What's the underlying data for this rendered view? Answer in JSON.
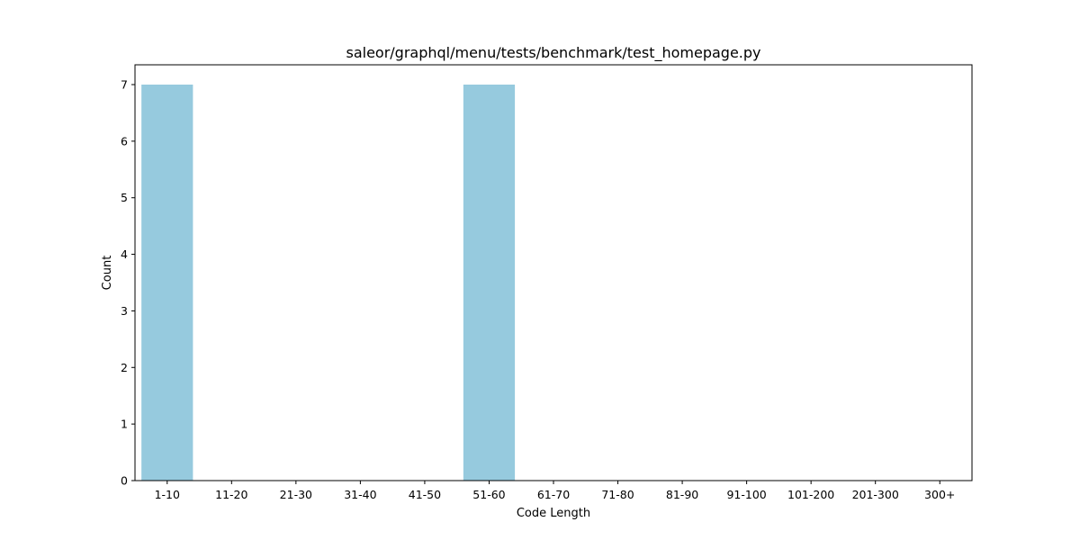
{
  "chart_data": {
    "type": "bar",
    "title": "saleor/graphql/menu/tests/benchmark/test_homepage.py",
    "xlabel": "Code Length",
    "ylabel": "Count",
    "categories": [
      "1-10",
      "11-20",
      "21-30",
      "31-40",
      "41-50",
      "51-60",
      "61-70",
      "71-80",
      "81-90",
      "91-100",
      "101-200",
      "201-300",
      "300+"
    ],
    "values": [
      7,
      0,
      0,
      0,
      0,
      7,
      0,
      0,
      0,
      0,
      0,
      0,
      0
    ],
    "ylim": [
      0,
      7.35
    ],
    "yticks": [
      0,
      1,
      2,
      3,
      4,
      5,
      6,
      7
    ],
    "bar_color": "#96cade",
    "grid": false,
    "legend": "none"
  }
}
